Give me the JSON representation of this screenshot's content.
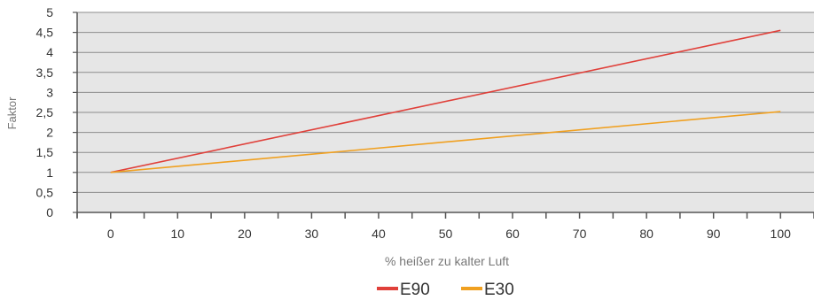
{
  "chart_data": {
    "type": "line",
    "xlabel": "% heißer zu kalter Luft",
    "ylabel": "Faktor",
    "xlim": [
      -5,
      105
    ],
    "ylim": [
      0,
      5
    ],
    "x_ticks": [
      0,
      10,
      20,
      30,
      40,
      50,
      60,
      70,
      80,
      90,
      100
    ],
    "x_tick_labels": [
      "0",
      "10",
      "20",
      "30",
      "40",
      "50",
      "60",
      "70",
      "80",
      "90",
      "100"
    ],
    "y_ticks": [
      0,
      0.5,
      1,
      1.5,
      2,
      2.5,
      3,
      3.5,
      4,
      4.5,
      5
    ],
    "y_tick_labels": [
      "0",
      "0,5",
      "1",
      "1,5",
      "2",
      "2,5",
      "3",
      "3,5",
      "4",
      "4,5",
      "5"
    ],
    "grid": "horizontal",
    "legend_position": "bottom-center",
    "series": [
      {
        "name": "E90",
        "color": "#e0403a",
        "x": [
          0,
          100
        ],
        "y": [
          1,
          4.55
        ]
      },
      {
        "name": "E30",
        "color": "#f0a020",
        "x": [
          0,
          100
        ],
        "y": [
          1,
          2.52
        ]
      }
    ]
  },
  "colors": {
    "plot_background": "#e6e6e6",
    "gridline": "#8c8c8c",
    "axis": "#555555",
    "text": "#333333"
  }
}
